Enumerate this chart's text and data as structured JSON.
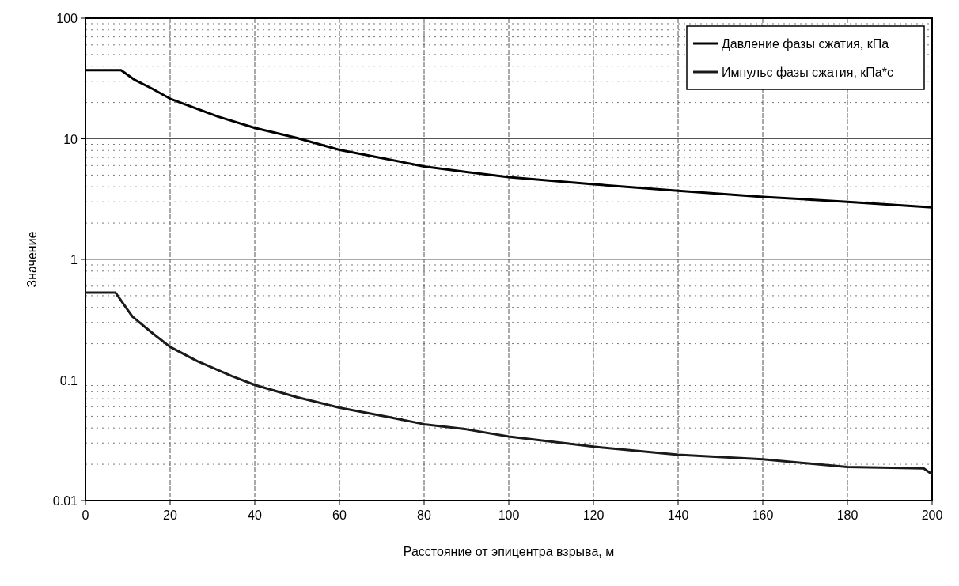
{
  "chart_data": {
    "type": "line",
    "xlabel": "Расстояние от эпицентра взрыва, м",
    "ylabel": "Значение",
    "log": "y",
    "grid": true,
    "legend": "top right",
    "marker": "none",
    "line_style": "solid",
    "xlim": [
      0,
      200
    ],
    "xticks": [
      0,
      20,
      40,
      60,
      80,
      100,
      120,
      140,
      160,
      180,
      200
    ],
    "ylim": [
      0.01,
      100
    ],
    "yticks": [
      0.01,
      0.1,
      1,
      10,
      100
    ],
    "series": [
      {
        "name": "Давление фазы сжатия, кПа",
        "color": "#000000",
        "x": [
          0,
          8.4,
          11.5,
          15.8,
          20,
          31.3,
          40,
          49.8,
          60,
          80,
          90,
          100,
          120,
          140,
          160,
          180,
          200
        ],
        "values": [
          37,
          37,
          31,
          26,
          21.5,
          15.3,
          12.3,
          10.2,
          8.1,
          5.9,
          5.3,
          4.8,
          4.2,
          3.7,
          3.3,
          3.0,
          2.7
        ]
      },
      {
        "name": "Импульс фазы сжатия, кПа*с",
        "color": "#1a1a1a",
        "x": [
          0,
          7.1,
          11.1,
          16,
          20,
          26.5,
          34.5,
          40,
          50,
          60,
          72,
          80,
          90,
          100,
          120,
          140,
          160,
          180,
          198,
          200
        ],
        "values": [
          0.53,
          0.53,
          0.335,
          0.242,
          0.188,
          0.143,
          0.108,
          0.091,
          0.072,
          0.059,
          0.049,
          0.043,
          0.039,
          0.034,
          0.028,
          0.024,
          0.022,
          0.019,
          0.0185,
          0.0165
        ]
      }
    ]
  }
}
